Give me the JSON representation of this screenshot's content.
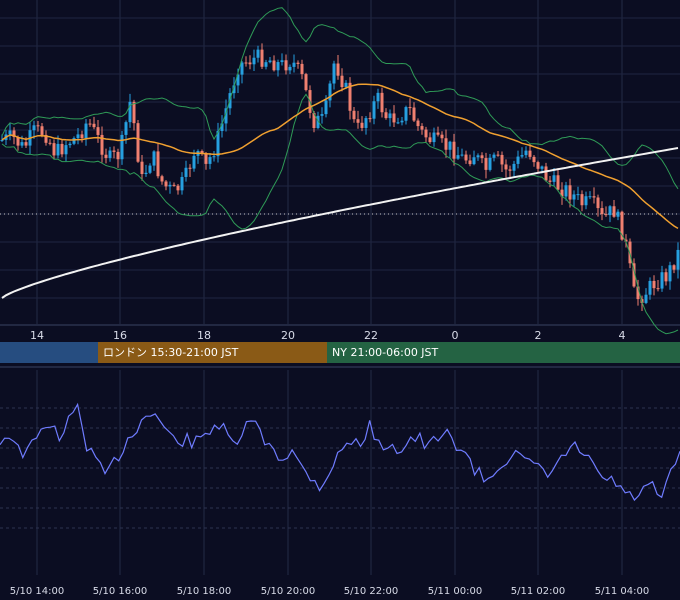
{
  "chart_data": {
    "type": "candlestick",
    "instrument_panel": {
      "x_tick_labels": [
        "14",
        "16",
        "18",
        "20",
        "22",
        "0",
        "2",
        "4"
      ],
      "indicators": [
        {
          "kind": "bollinger-bands",
          "color": "#2f9b57"
        },
        {
          "kind": "moving-average-short",
          "color": "#f0a030"
        },
        {
          "kind": "moving-average-long",
          "color": "#f2f2f2"
        }
      ],
      "colors": {
        "up": "#26a0e0",
        "down": "#f08070",
        "reference_line": "#c8c8c8"
      },
      "price_path": [
        0.63,
        0.64,
        0.6,
        0.66,
        0.66,
        0.58,
        0.62,
        0.64,
        0.7,
        0.63,
        0.56,
        0.58,
        0.78,
        0.48,
        0.58,
        0.47,
        0.44,
        0.48,
        0.6,
        0.53,
        0.62,
        0.76,
        0.9,
        0.92,
        0.93,
        0.92,
        0.9,
        0.92,
        0.85,
        0.7,
        0.7,
        0.92,
        0.82,
        0.66,
        0.72,
        0.78,
        0.7,
        0.72,
        0.74,
        0.66,
        0.63,
        0.61,
        0.6,
        0.56,
        0.58,
        0.52,
        0.56,
        0.52,
        0.55,
        0.6,
        0.54,
        0.48,
        0.46,
        0.44,
        0.4,
        0.4,
        0.34,
        0.38,
        0.28,
        0.05,
        0.08,
        0.12,
        0.14,
        0.22
      ],
      "grid": true
    },
    "sessions": [
      {
        "label": "",
        "color": "#264d80"
      },
      {
        "label": "ロンドン 15:30-21:00 JST",
        "color": "#8a5a16"
      },
      {
        "label": "NY 21:00-06:00 JST",
        "color": "#246343"
      }
    ],
    "oscillator_panel": {
      "color": "#6f7cff",
      "grid": true,
      "path": [
        0.7,
        0.78,
        0.6,
        0.62,
        0.75,
        0.9,
        0.72,
        0.86,
        1.0,
        0.65,
        0.5,
        0.4,
        0.55,
        0.7,
        0.82,
        0.92,
        0.95,
        0.8,
        0.7,
        0.72,
        0.68,
        0.74,
        0.86,
        0.8,
        0.65,
        0.78,
        0.9,
        0.72,
        0.66,
        0.55,
        0.62,
        0.48,
        0.4,
        0.3,
        0.46,
        0.6,
        0.72,
        0.66,
        0.85,
        0.65,
        0.7,
        0.62,
        0.7,
        0.74,
        0.64,
        0.72,
        0.76,
        0.68,
        0.58,
        0.44,
        0.36,
        0.45,
        0.55,
        0.6,
        0.5,
        0.52,
        0.4,
        0.46,
        0.56,
        0.66,
        0.6,
        0.48,
        0.38,
        0.36,
        0.28,
        0.2,
        0.26,
        0.32,
        0.18,
        0.4,
        0.6
      ],
      "x_tick_labels": [
        "5/10 14:00",
        "5/10 16:00",
        "5/10 18:00",
        "5/10 20:00",
        "5/10 22:00",
        "5/11 00:00",
        "5/11 02:00",
        "5/11 04:00"
      ]
    }
  }
}
